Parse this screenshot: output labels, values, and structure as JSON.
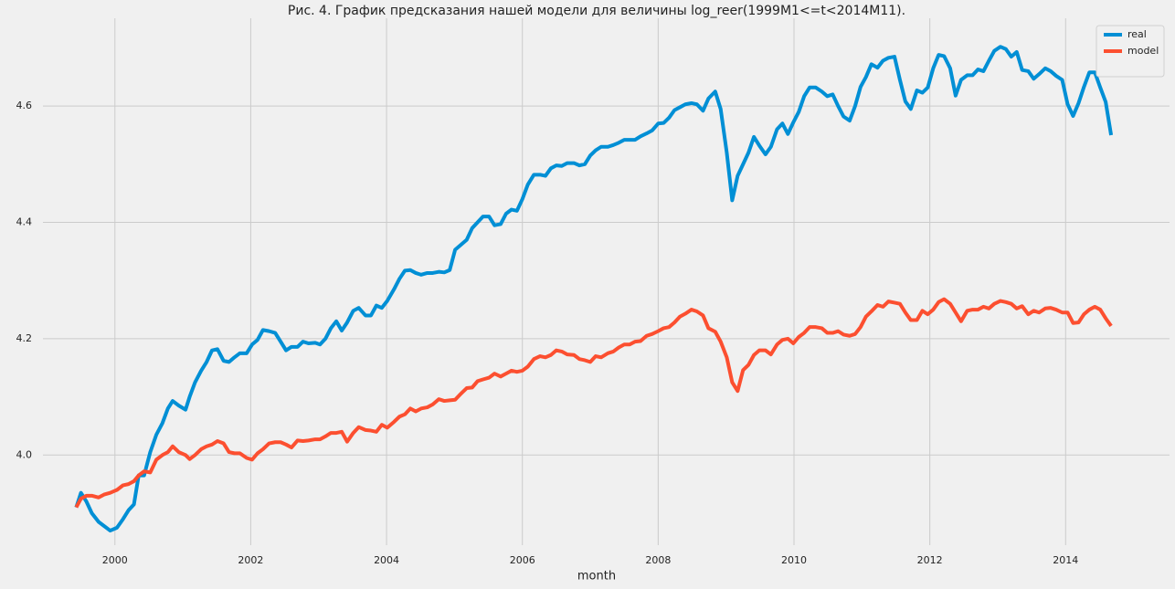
{
  "chart_data": {
    "type": "line",
    "title": "Рис. 4. График предсказания нашей модели для величины log_reer(1999M1<=t<2014M11).",
    "x_label": "month",
    "x": [
      1999.43,
      1999.5,
      1999.58,
      1999.66,
      1999.76,
      1999.84,
      1999.93,
      2000.03,
      2000.12,
      2000.2,
      2000.28,
      2000.35,
      2000.43,
      2000.52,
      2000.61,
      2000.7,
      2000.78,
      2000.85,
      2000.94,
      2001.04,
      2001.1,
      2001.18,
      2001.27,
      2001.35,
      2001.43,
      2001.51,
      2001.6,
      2001.68,
      2001.76,
      2001.84,
      2001.94,
      2002.02,
      2002.1,
      2002.18,
      2002.27,
      2002.36,
      2002.44,
      2002.52,
      2002.6,
      2002.69,
      2002.77,
      2002.85,
      2002.95,
      2003.02,
      2003.1,
      2003.18,
      2003.26,
      2003.34,
      2003.42,
      2003.51,
      2003.59,
      2003.69,
      2003.77,
      2003.85,
      2003.93,
      2004.01,
      2004.11,
      2004.19,
      2004.27,
      2004.35,
      2004.43,
      2004.51,
      2004.6,
      2004.68,
      2004.77,
      2004.85,
      2004.93,
      2005.01,
      2005.1,
      2005.18,
      2005.26,
      2005.34,
      2005.42,
      2005.51,
      2005.59,
      2005.68,
      2005.76,
      2005.84,
      2005.92,
      2006.0,
      2006.08,
      2006.17,
      2006.26,
      2006.34,
      2006.42,
      2006.5,
      2006.58,
      2006.66,
      2006.76,
      2006.84,
      2006.92,
      2007.0,
      2007.08,
      2007.16,
      2007.26,
      2007.34,
      2007.42,
      2007.5,
      2007.58,
      2007.66,
      2007.74,
      2007.83,
      2007.91,
      2008.0,
      2008.08,
      2008.16,
      2008.24,
      2008.32,
      2008.4,
      2008.49,
      2008.57,
      2008.66,
      2008.74,
      2008.84,
      2008.92,
      2009.01,
      2009.09,
      2009.17,
      2009.25,
      2009.33,
      2009.41,
      2009.49,
      2009.58,
      2009.66,
      2009.75,
      2009.83,
      2009.91,
      2009.99,
      2010.07,
      2010.15,
      2010.23,
      2010.32,
      2010.41,
      2010.49,
      2010.57,
      2010.65,
      2010.73,
      2010.82,
      2010.9,
      2010.98,
      2011.06,
      2011.14,
      2011.23,
      2011.31,
      2011.39,
      2011.48,
      2011.56,
      2011.64,
      2011.72,
      2011.81,
      2011.89,
      2011.97,
      2012.05,
      2012.13,
      2012.21,
      2012.3,
      2012.38,
      2012.46,
      2012.55,
      2012.63,
      2012.71,
      2012.79,
      2012.87,
      2012.95,
      2013.04,
      2013.12,
      2013.2,
      2013.28,
      2013.36,
      2013.45,
      2013.53,
      2013.61,
      2013.7,
      2013.78,
      2013.86,
      2013.95,
      2014.03,
      2014.11,
      2014.19,
      2014.27,
      2014.35,
      2014.43,
      2014.51,
      2014.59,
      2014.67
    ],
    "series": [
      {
        "name": "real",
        "color": "#008fd5",
        "values": [
          3.91,
          3.935,
          3.92,
          3.9,
          3.885,
          3.878,
          3.87,
          3.875,
          3.89,
          3.905,
          3.915,
          3.965,
          3.965,
          4.005,
          4.035,
          4.055,
          4.08,
          4.093,
          4.085,
          4.078,
          4.1,
          4.125,
          4.145,
          4.16,
          4.18,
          4.182,
          4.162,
          4.16,
          4.168,
          4.175,
          4.175,
          4.19,
          4.198,
          4.215,
          4.213,
          4.21,
          4.195,
          4.18,
          4.186,
          4.186,
          4.195,
          4.192,
          4.193,
          4.19,
          4.2,
          4.218,
          4.23,
          4.214,
          4.228,
          4.248,
          4.253,
          4.24,
          4.24,
          4.257,
          4.253,
          4.265,
          4.285,
          4.303,
          4.317,
          4.318,
          4.313,
          4.31,
          4.313,
          4.313,
          4.315,
          4.314,
          4.318,
          4.353,
          4.362,
          4.37,
          4.39,
          4.4,
          4.41,
          4.41,
          4.395,
          4.397,
          4.415,
          4.422,
          4.42,
          4.44,
          4.465,
          4.482,
          4.482,
          4.48,
          4.493,
          4.498,
          4.497,
          4.502,
          4.502,
          4.498,
          4.5,
          4.515,
          4.524,
          4.53,
          4.53,
          4.533,
          4.537,
          4.542,
          4.542,
          4.542,
          4.548,
          4.553,
          4.558,
          4.57,
          4.571,
          4.58,
          4.593,
          4.598,
          4.603,
          4.605,
          4.603,
          4.592,
          4.613,
          4.625,
          4.595,
          4.52,
          4.438,
          4.48,
          4.5,
          4.52,
          4.547,
          4.532,
          4.517,
          4.53,
          4.56,
          4.57,
          4.552,
          4.572,
          4.59,
          4.617,
          4.632,
          4.632,
          4.625,
          4.617,
          4.62,
          4.6,
          4.582,
          4.575,
          4.6,
          4.633,
          4.65,
          4.672,
          4.666,
          4.678,
          4.683,
          4.685,
          4.645,
          4.608,
          4.595,
          4.627,
          4.623,
          4.632,
          4.665,
          4.688,
          4.686,
          4.665,
          4.618,
          4.645,
          4.653,
          4.653,
          4.663,
          4.66,
          4.678,
          4.695,
          4.702,
          4.698,
          4.685,
          4.693,
          4.662,
          4.66,
          4.647,
          4.655,
          4.665,
          4.66,
          4.652,
          4.645,
          4.603,
          4.583,
          4.605,
          4.633,
          4.658,
          4.658,
          4.632,
          4.607,
          4.55
        ]
      },
      {
        "name": "model",
        "color": "#fc4f30",
        "values": [
          3.91,
          3.925,
          3.93,
          3.93,
          3.927,
          3.932,
          3.935,
          3.94,
          3.948,
          3.95,
          3.955,
          3.965,
          3.972,
          3.97,
          3.992,
          4.0,
          4.005,
          4.015,
          4.005,
          4.0,
          3.993,
          4.0,
          4.01,
          4.015,
          4.018,
          4.024,
          4.02,
          4.005,
          4.003,
          4.003,
          3.995,
          3.992,
          4.003,
          4.01,
          4.02,
          4.022,
          4.022,
          4.018,
          4.013,
          4.025,
          4.024,
          4.025,
          4.027,
          4.027,
          4.032,
          4.038,
          4.038,
          4.04,
          4.023,
          4.038,
          4.048,
          4.043,
          4.042,
          4.04,
          4.052,
          4.047,
          4.057,
          4.066,
          4.07,
          4.08,
          4.075,
          4.08,
          4.082,
          4.087,
          4.096,
          4.093,
          4.094,
          4.095,
          4.106,
          4.115,
          4.116,
          4.127,
          4.13,
          4.133,
          4.14,
          4.135,
          4.14,
          4.145,
          4.143,
          4.145,
          4.152,
          4.165,
          4.17,
          4.168,
          4.172,
          4.18,
          4.178,
          4.173,
          4.172,
          4.165,
          4.163,
          4.16,
          4.17,
          4.168,
          4.175,
          4.178,
          4.185,
          4.19,
          4.19,
          4.195,
          4.196,
          4.205,
          4.208,
          4.213,
          4.218,
          4.22,
          4.228,
          4.238,
          4.243,
          4.25,
          4.247,
          4.24,
          4.218,
          4.212,
          4.195,
          4.168,
          4.125,
          4.11,
          4.146,
          4.155,
          4.172,
          4.18,
          4.18,
          4.173,
          4.19,
          4.198,
          4.2,
          4.192,
          4.203,
          4.21,
          4.22,
          4.22,
          4.218,
          4.21,
          4.21,
          4.213,
          4.207,
          4.205,
          4.208,
          4.22,
          4.238,
          4.247,
          4.258,
          4.255,
          4.264,
          4.262,
          4.26,
          4.245,
          4.232,
          4.232,
          4.248,
          4.242,
          4.25,
          4.263,
          4.268,
          4.26,
          4.245,
          4.23,
          4.248,
          4.25,
          4.25,
          4.255,
          4.252,
          4.26,
          4.265,
          4.263,
          4.26,
          4.252,
          4.256,
          4.242,
          4.248,
          4.245,
          4.252,
          4.253,
          4.25,
          4.245,
          4.245,
          4.227,
          4.228,
          4.242,
          4.25,
          4.255,
          4.25,
          4.235,
          4.222
        ]
      }
    ],
    "xlim": [
      1998.94,
      2015.53
    ],
    "xticks": [
      2000,
      2002,
      2004,
      2006,
      2008,
      2010,
      2012,
      2014
    ],
    "ylim": [
      3.845,
      4.751
    ],
    "yticks": [
      {
        "value": 4.0,
        "label": "4.0"
      },
      4.2,
      4.4,
      4.6
    ],
    "grid": true,
    "legend": "upper right"
  }
}
